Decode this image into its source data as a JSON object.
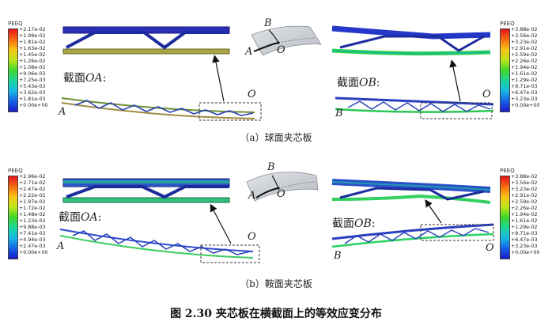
{
  "legends": {
    "a_left": {
      "title": "PEEQ",
      "values": [
        "+2.17e-02",
        "+1.99e-02",
        "+1.81e-02",
        "+1.63e-02",
        "+1.45e-02",
        "+1.26e-02",
        "+1.08e-02",
        "+9.06e-03",
        "+7.25e-03",
        "+5.43e-03",
        "+3.62e-03",
        "+1.81e-03",
        "+0.00e+00"
      ]
    },
    "a_right": {
      "title": "PEEQ",
      "values": [
        "+3.88e-02",
        "+3.56e-02",
        "+3.23e-02",
        "+2.91e-02",
        "+2.59e-02",
        "+2.26e-02",
        "+1.94e-02",
        "+1.61e-02",
        "+1.29e-02",
        "+9.71e-03",
        "+6.47e-03",
        "+3.23e-03",
        "+0.00e+00"
      ]
    },
    "b_left": {
      "title": "PEEQ",
      "values": [
        "+2.96e-02",
        "+2.71e-02",
        "+2.47e-02",
        "+2.22e-02",
        "+1.97e-02",
        "+1.72e-02",
        "+1.48e-02",
        "+1.23e-02",
        "+9.88e-03",
        "+7.41e-03",
        "+4.94e-03",
        "+2.47e-03",
        "+0.00e+00"
      ]
    },
    "b_right": {
      "title": "PEEQ",
      "values": [
        "+3.88e-02",
        "+3.56e-02",
        "+3.23e-02",
        "+2.91e-02",
        "+2.59e-02",
        "+2.26e-02",
        "+1.94e-02",
        "+1.61e-02",
        "+1.29e-02",
        "+9.71e-03",
        "+6.47e-03",
        "+3.23e-03",
        "+0.00e+00"
      ]
    }
  },
  "panel_a": {
    "section_oa_prefix": "截面",
    "section_oa_var": "OA",
    "section_oa_suffix": ":",
    "section_ob_prefix": "截面",
    "section_ob_var": "OB",
    "section_ob_suffix": ":",
    "pt_A1": "A",
    "pt_O1": "O",
    "pt_A2": "A",
    "pt_O2": "O",
    "pt_B": "B",
    "pt_O3": "O",
    "pt_A3": "A",
    "pt_B3": "B",
    "pt_O4": "O",
    "caption": "（a）球面夹芯板"
  },
  "panel_b": {
    "section_oa_prefix": "截面",
    "section_oa_var": "OA",
    "section_oa_suffix": ":",
    "section_ob_prefix": "截面",
    "section_ob_var": "OB",
    "section_ob_suffix": ":",
    "pt_A1": "A",
    "pt_O1": "O",
    "pt_A2": "A",
    "pt_O2": "O",
    "pt_B": "B",
    "pt_O3": "O",
    "pt_A3": "A",
    "pt_B3": "B",
    "pt_O4": "O",
    "caption": "（b）鞍面夹芯板"
  },
  "figure_caption": "图 2.30  夹芯板在横截面上的等效应变分布"
}
